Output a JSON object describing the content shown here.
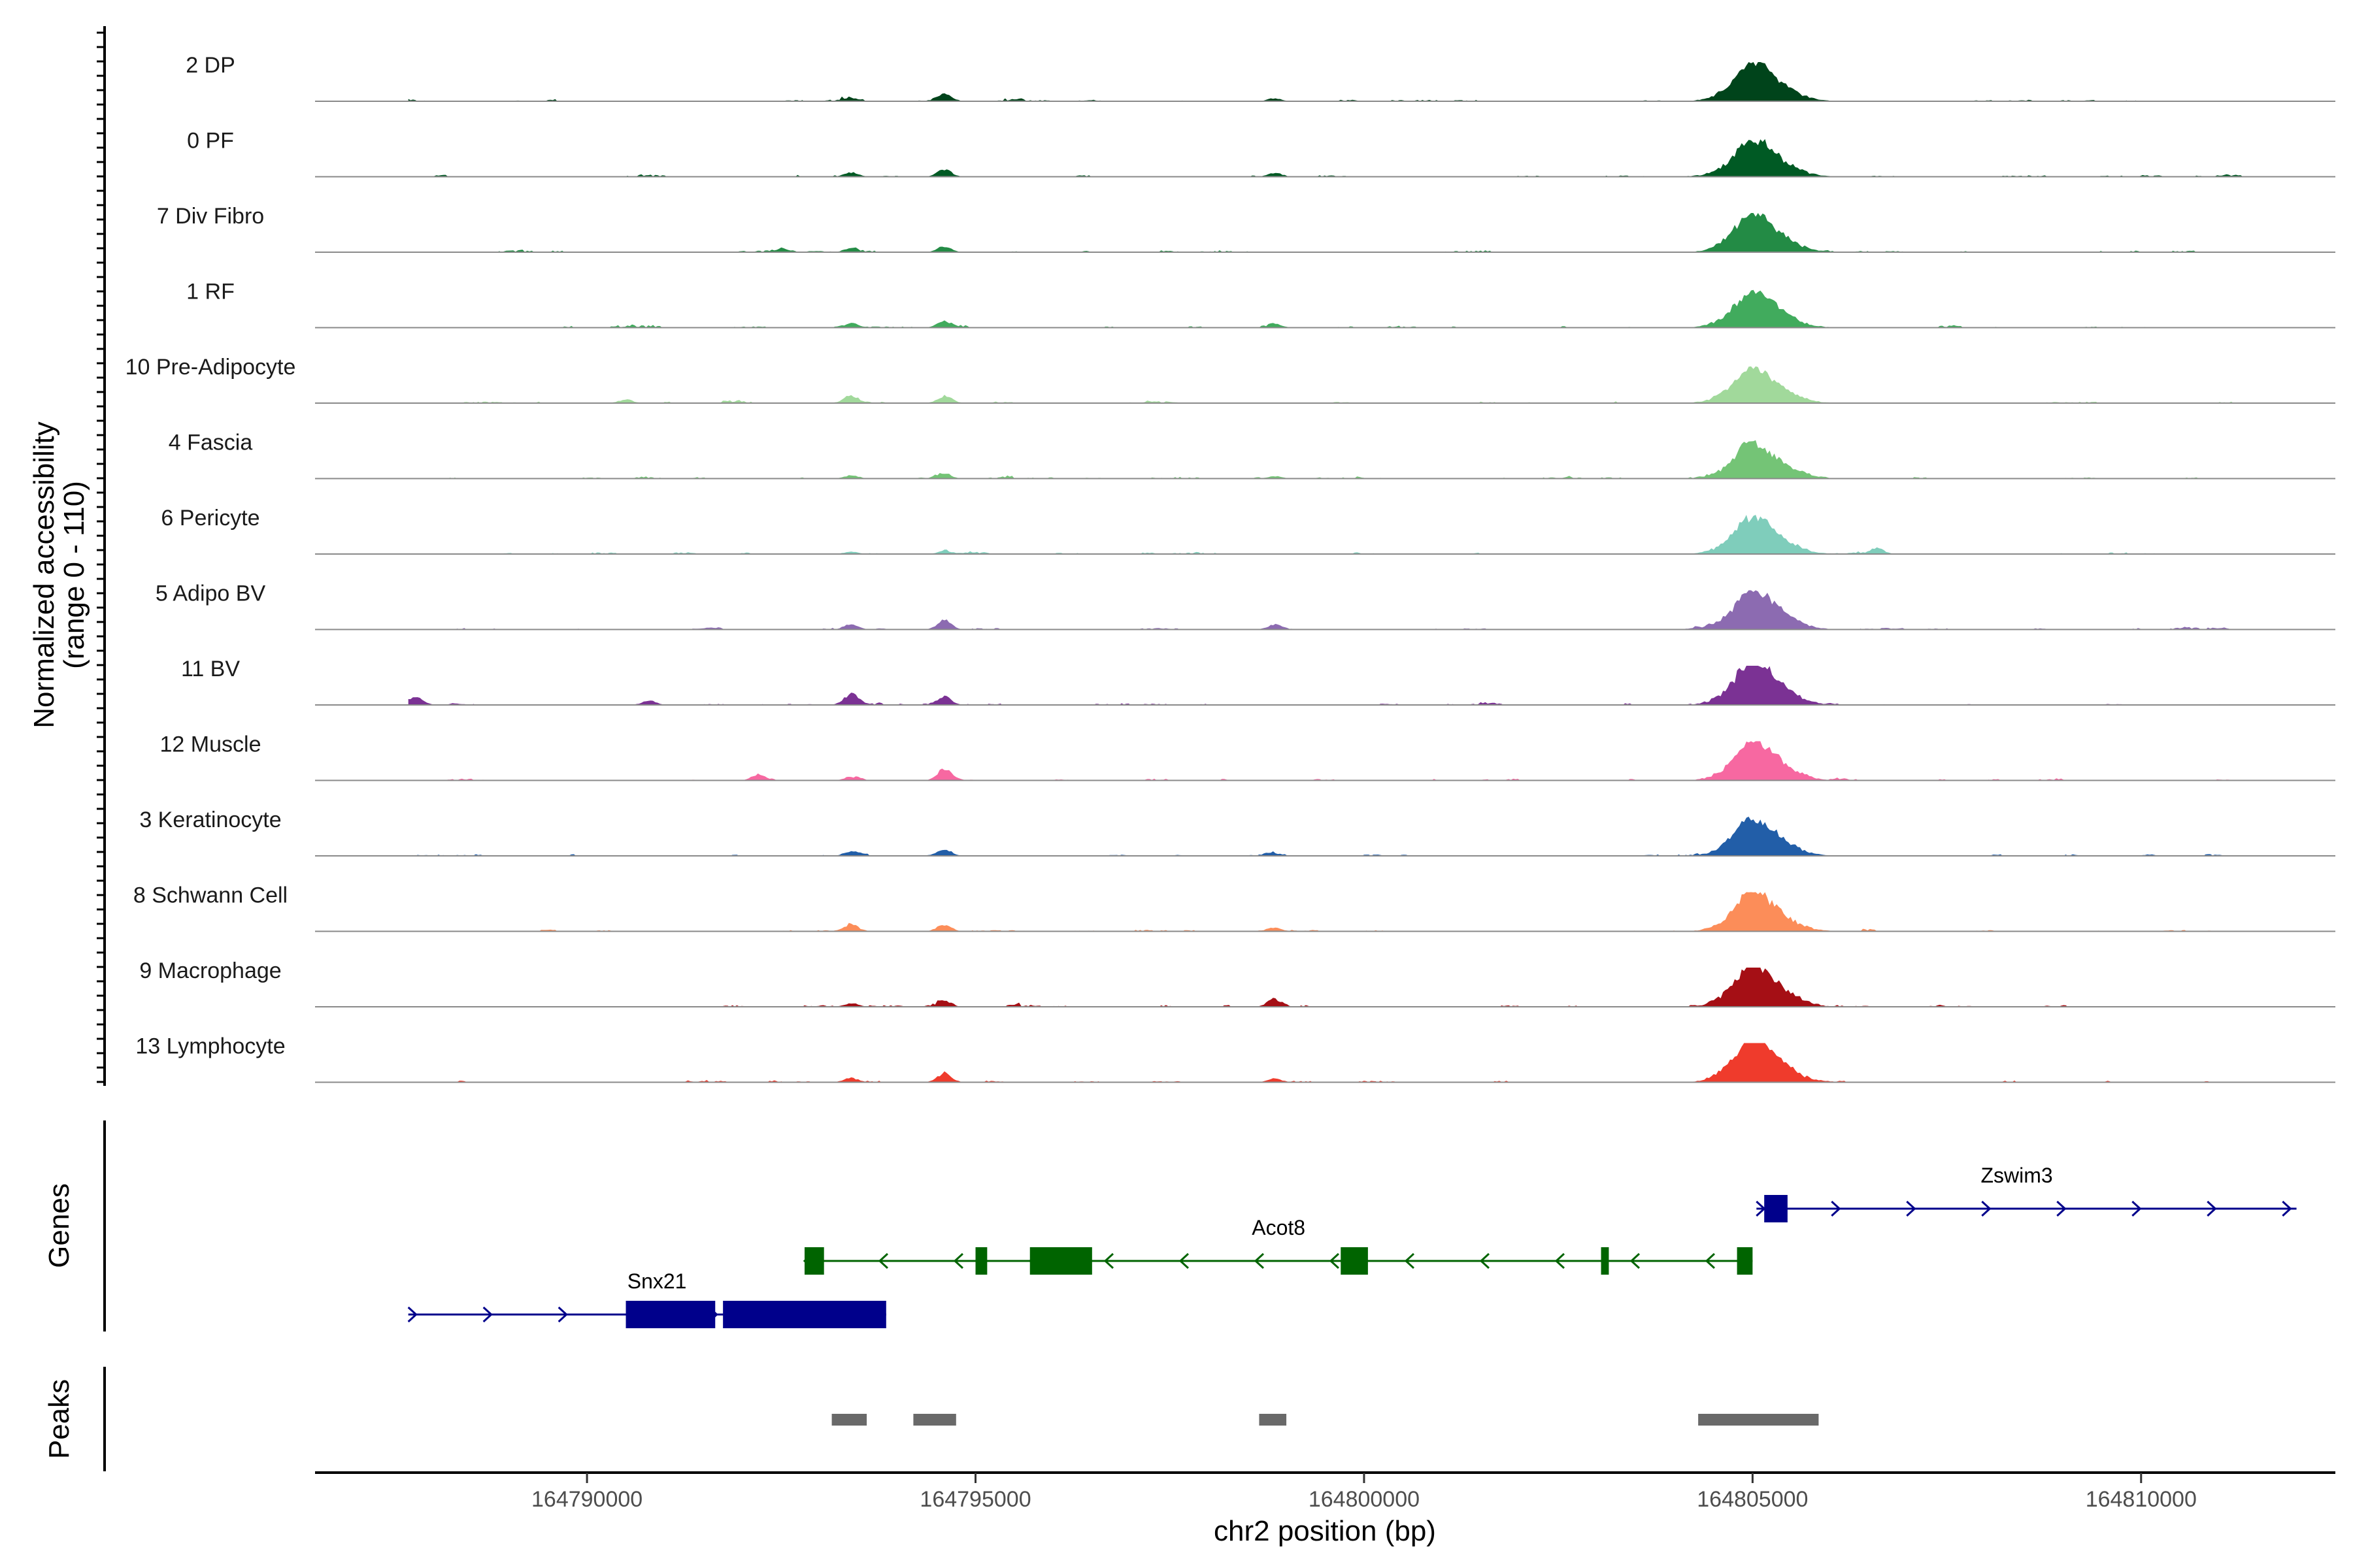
{
  "chart_data": {
    "type": "area",
    "title": "",
    "ylabel": "Normalized accessibility",
    "ylabel_range": "(range 0 - 110)",
    "xlabel": "chr2 position (bp)",
    "xlim": [
      164786500,
      164812500
    ],
    "ylim": [
      0,
      110
    ],
    "xticks": [
      {
        "value": 164790000,
        "label": "164790000"
      },
      {
        "value": 164795000,
        "label": "164795000"
      },
      {
        "value": 164800000,
        "label": "164800000"
      },
      {
        "value": 164805000,
        "label": "164805000"
      },
      {
        "value": 164810000,
        "label": "164810000"
      }
    ],
    "peak_region": {
      "start": 164804400,
      "summit": 164805000,
      "end": 164805900
    },
    "tracks": [
      {
        "name": "2 DP",
        "color": "#00441b",
        "peak_height": 96,
        "secondary": [
          {
            "x": 164794600,
            "h": 24
          },
          {
            "x": 164793400,
            "h": 10
          },
          {
            "x": 164798850,
            "h": 8
          }
        ]
      },
      {
        "name": "0 PF",
        "color": "#005a24",
        "peak_height": 92,
        "secondary": [
          {
            "x": 164794600,
            "h": 20
          },
          {
            "x": 164793400,
            "h": 12
          },
          {
            "x": 164798850,
            "h": 10
          }
        ]
      },
      {
        "name": "7 Div Fibro",
        "color": "#238b45",
        "peak_height": 96,
        "secondary": [
          {
            "x": 164794600,
            "h": 16
          },
          {
            "x": 164793400,
            "h": 12
          },
          {
            "x": 164792500,
            "h": 8
          }
        ]
      },
      {
        "name": "1 RF",
        "color": "#41ab5d",
        "peak_height": 90,
        "secondary": [
          {
            "x": 164794600,
            "h": 18
          },
          {
            "x": 164793400,
            "h": 12
          },
          {
            "x": 164798850,
            "h": 10
          }
        ]
      },
      {
        "name": "10 Pre-Adipocyte",
        "color": "#a1d99b",
        "peak_height": 84,
        "secondary": [
          {
            "x": 164794600,
            "h": 20
          },
          {
            "x": 164793400,
            "h": 22
          },
          {
            "x": 164790500,
            "h": 10
          }
        ]
      },
      {
        "name": "4 Fascia",
        "color": "#74c476",
        "peak_height": 88,
        "secondary": [
          {
            "x": 164794600,
            "h": 12
          },
          {
            "x": 164793400,
            "h": 8
          },
          {
            "x": 164798850,
            "h": 6
          }
        ]
      },
      {
        "name": "6 Pericyte",
        "color": "#7fcdbb",
        "peak_height": 90,
        "secondary": [
          {
            "x": 164806600,
            "h": 16
          },
          {
            "x": 164794600,
            "h": 8
          },
          {
            "x": 164793400,
            "h": 6
          }
        ]
      },
      {
        "name": "5 Adipo BV",
        "color": "#8c6bb1",
        "peak_height": 100,
        "secondary": [
          {
            "x": 164794600,
            "h": 26
          },
          {
            "x": 164793400,
            "h": 16
          },
          {
            "x": 164798850,
            "h": 14
          }
        ]
      },
      {
        "name": "11 BV",
        "color": "#7b3294",
        "peak_height": 108,
        "secondary": [
          {
            "x": 164793400,
            "h": 30
          },
          {
            "x": 164794600,
            "h": 24
          },
          {
            "x": 164787800,
            "h": 22
          },
          {
            "x": 164790800,
            "h": 12
          }
        ]
      },
      {
        "name": "12 Muscle",
        "color": "#f768a1",
        "peak_height": 94,
        "secondary": [
          {
            "x": 164794600,
            "h": 30
          },
          {
            "x": 164792200,
            "h": 14
          },
          {
            "x": 164793400,
            "h": 10
          }
        ]
      },
      {
        "name": "3 Keratinocyte",
        "color": "#225ea8",
        "peak_height": 92,
        "secondary": [
          {
            "x": 164794600,
            "h": 18
          },
          {
            "x": 164793400,
            "h": 10
          },
          {
            "x": 164798850,
            "h": 6
          }
        ]
      },
      {
        "name": "8 Schwann Cell",
        "color": "#fc8d59",
        "peak_height": 98,
        "secondary": [
          {
            "x": 164794600,
            "h": 18
          },
          {
            "x": 164793400,
            "h": 14
          },
          {
            "x": 164798850,
            "h": 10
          }
        ]
      },
      {
        "name": "9 Macrophage",
        "color": "#a50f15",
        "peak_height": 104,
        "secondary": [
          {
            "x": 164798850,
            "h": 22
          },
          {
            "x": 164794600,
            "h": 14
          },
          {
            "x": 164793400,
            "h": 10
          }
        ]
      },
      {
        "name": "13 Lymphocyte",
        "color": "#ef3b2c",
        "peak_height": 110,
        "secondary": [
          {
            "x": 164794600,
            "h": 26
          },
          {
            "x": 164793400,
            "h": 12
          },
          {
            "x": 164798850,
            "h": 10
          }
        ]
      }
    ],
    "genes_label": "Genes",
    "genes": [
      {
        "name": "Zswim3",
        "strand": "+",
        "color": "#00008b",
        "start": 164805050,
        "end": 164812000,
        "exons": [
          [
            164805150,
            164805450
          ]
        ],
        "row": 0,
        "label_x": 164808400
      },
      {
        "name": "Acot8",
        "strand": "-",
        "color": "#006400",
        "start": 164792800,
        "end": 164805000,
        "exons": [
          [
            164792800,
            164793050
          ],
          [
            164795000,
            164795150
          ],
          [
            164795700,
            164796500
          ],
          [
            164799700,
            164800050
          ],
          [
            164803050,
            164803150
          ],
          [
            164804800,
            164805000
          ]
        ],
        "row": 1,
        "label_x": 164798900
      },
      {
        "name": "Snx21",
        "strand": "+",
        "color": "#00008b",
        "start": 164787700,
        "end": 164793850,
        "exons": [
          [
            164790500,
            164791650
          ],
          [
            164791750,
            164793850
          ]
        ],
        "row": 2,
        "label_x": 164790900
      }
    ],
    "peaks_label": "Peaks",
    "peaks_color": "#696969",
    "peaks": [
      [
        164793150,
        164793600
      ],
      [
        164794200,
        164794750
      ],
      [
        164798650,
        164799000
      ],
      [
        164804300,
        164805850
      ]
    ]
  }
}
